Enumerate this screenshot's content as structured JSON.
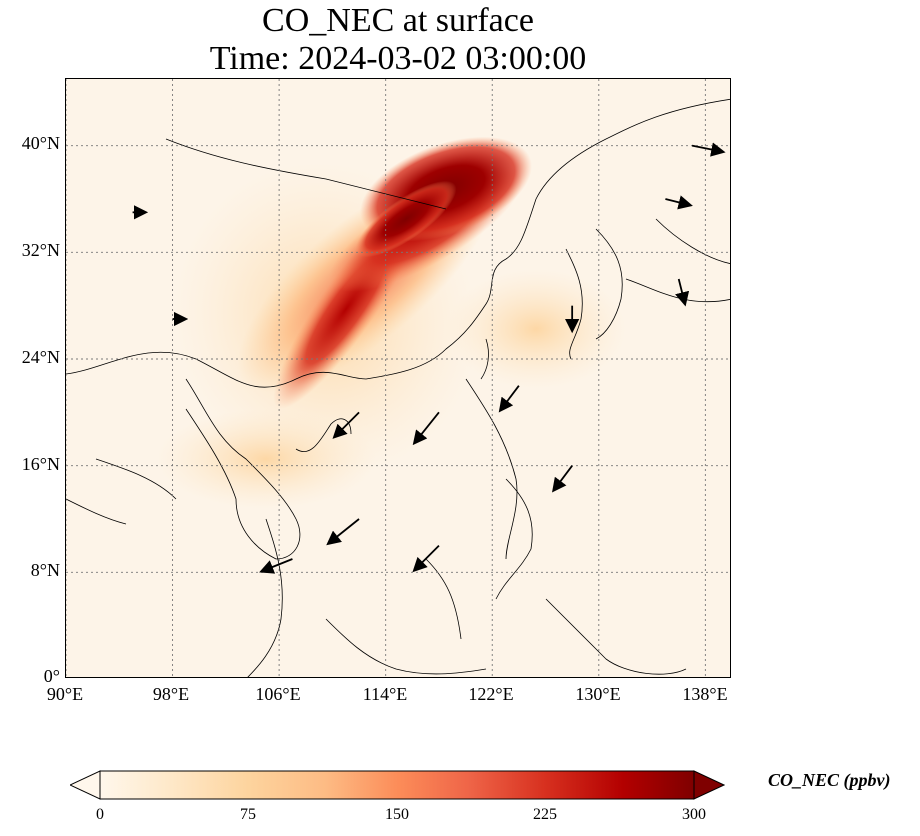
{
  "title": {
    "line1": "CO_NEC at surface",
    "line2": "Time: 2024-03-02 03:00:00"
  },
  "map": {
    "extent": {
      "lon_min": 90,
      "lon_max": 140,
      "lat_min": 0,
      "lat_max": 45
    },
    "lat_ticks": [
      "0°",
      "8°N",
      "16°N",
      "24°N",
      "32°N",
      "40°N"
    ],
    "lon_ticks": [
      "90°E",
      "98°E",
      "106°E",
      "114°E",
      "122°E",
      "130°E",
      "138°E"
    ],
    "gridlines": true,
    "background_color": "#fdf4e8"
  },
  "colorbar": {
    "label": "CO_NEC (ppbv)",
    "ticks": [
      "0",
      "75",
      "150",
      "225",
      "300"
    ],
    "min": 0,
    "max": 300,
    "extend": "both",
    "colormap": "OrRd",
    "colors": [
      "#fff7ec",
      "#fee8c8",
      "#fdd49e",
      "#fdbb84",
      "#fc8d59",
      "#ef6548",
      "#d7301f",
      "#b30000",
      "#7f0000"
    ]
  },
  "chart_data": {
    "type": "heatmap",
    "variable": "CO_NEC",
    "units": "ppbv",
    "level": "surface",
    "time": "2024-03-02 03:00:00",
    "plumes": [
      {
        "lon": 119,
        "lat": 38.5,
        "value": 300
      },
      {
        "lon": 116,
        "lat": 36,
        "value": 290
      },
      {
        "lon": 113,
        "lat": 33,
        "value": 240
      },
      {
        "lon": 110,
        "lat": 29,
        "value": 170
      },
      {
        "lon": 125,
        "lat": 30,
        "value": 70
      },
      {
        "lon": 104,
        "lat": 19,
        "value": 40
      }
    ],
    "wind_vectors": [
      {
        "lon": 112,
        "lat": 20,
        "u": -4,
        "v": -4
      },
      {
        "lon": 118,
        "lat": 20,
        "u": -4,
        "v": -5
      },
      {
        "lon": 112,
        "lat": 12,
        "u": -5,
        "v": -4
      },
      {
        "lon": 118,
        "lat": 10,
        "u": -4,
        "v": -4
      },
      {
        "lon": 107,
        "lat": 9,
        "u": -5,
        "v": -2
      },
      {
        "lon": 124,
        "lat": 22,
        "u": -3,
        "v": -4
      },
      {
        "lon": 128,
        "lat": 16,
        "u": -3,
        "v": -4
      },
      {
        "lon": 128,
        "lat": 28,
        "u": 0,
        "v": -4
      },
      {
        "lon": 135,
        "lat": 36,
        "u": 4,
        "v": -1
      },
      {
        "lon": 136,
        "lat": 30,
        "u": 1,
        "v": -4
      },
      {
        "lon": 137,
        "lat": 40,
        "u": 5,
        "v": -1
      },
      {
        "lon": 95,
        "lat": 35,
        "u": 2,
        "v": 0
      },
      {
        "lon": 98,
        "lat": 27,
        "u": 2,
        "v": 0
      }
    ]
  }
}
